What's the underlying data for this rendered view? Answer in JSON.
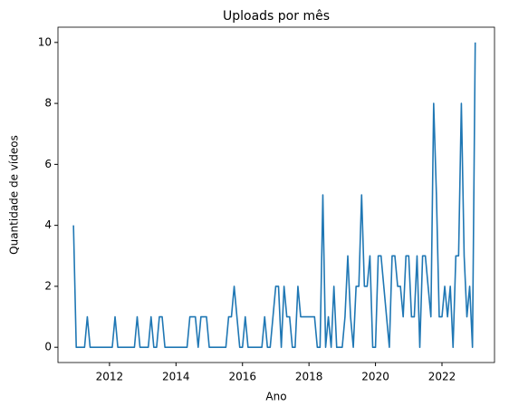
{
  "chart_data": {
    "type": "line",
    "title": "Uploads por mês",
    "x_label": "Ano",
    "y_label": "Quantidade de vídeos",
    "x": [
      2010.917,
      2011.0,
      2011.083,
      2011.167,
      2011.25,
      2011.333,
      2011.417,
      2011.5,
      2011.583,
      2011.667,
      2011.75,
      2011.833,
      2011.917,
      2012.0,
      2012.083,
      2012.167,
      2012.25,
      2012.333,
      2012.417,
      2012.5,
      2012.583,
      2012.667,
      2012.75,
      2012.833,
      2012.917,
      2013.0,
      2013.083,
      2013.167,
      2013.25,
      2013.333,
      2013.417,
      2013.5,
      2013.583,
      2013.667,
      2013.75,
      2013.833,
      2013.917,
      2014.0,
      2014.083,
      2014.167,
      2014.25,
      2014.333,
      2014.417,
      2014.5,
      2014.583,
      2014.667,
      2014.75,
      2014.833,
      2014.917,
      2015.0,
      2015.083,
      2015.167,
      2015.25,
      2015.333,
      2015.417,
      2015.5,
      2015.583,
      2015.667,
      2015.75,
      2015.833,
      2015.917,
      2016.0,
      2016.083,
      2016.167,
      2016.25,
      2016.333,
      2016.417,
      2016.5,
      2016.583,
      2016.667,
      2016.75,
      2016.833,
      2016.917,
      2017.0,
      2017.083,
      2017.167,
      2017.25,
      2017.333,
      2017.417,
      2017.5,
      2017.583,
      2017.667,
      2017.75,
      2017.833,
      2017.917,
      2018.0,
      2018.083,
      2018.167,
      2018.25,
      2018.333,
      2018.417,
      2018.5,
      2018.583,
      2018.667,
      2018.75,
      2018.833,
      2018.917,
      2019.0,
      2019.083,
      2019.167,
      2019.25,
      2019.333,
      2019.417,
      2019.5,
      2019.583,
      2019.667,
      2019.75,
      2019.833,
      2019.917,
      2020.0,
      2020.083,
      2020.167,
      2020.25,
      2020.333,
      2020.417,
      2020.5,
      2020.583,
      2020.667,
      2020.75,
      2020.833,
      2020.917,
      2021.0,
      2021.083,
      2021.167,
      2021.25,
      2021.333,
      2021.417,
      2021.5,
      2021.583,
      2021.667,
      2021.75,
      2021.833,
      2021.917,
      2022.0,
      2022.083,
      2022.167,
      2022.25,
      2022.333,
      2022.417,
      2022.5,
      2022.583,
      2022.667,
      2022.75,
      2022.833,
      2022.917,
      2023.0
    ],
    "series": [
      {
        "name": "uploads",
        "color": "#1f77b4",
        "values": [
          4,
          0,
          0,
          0,
          0,
          1,
          0,
          0,
          0,
          0,
          0,
          0,
          0,
          0,
          0,
          1,
          0,
          0,
          0,
          0,
          0,
          0,
          0,
          1,
          0,
          0,
          0,
          0,
          1,
          0,
          0,
          1,
          1,
          0,
          0,
          0,
          0,
          0,
          0,
          0,
          0,
          0,
          1,
          1,
          1,
          0,
          1,
          1,
          1,
          0,
          0,
          0,
          0,
          0,
          0,
          0,
          1,
          1,
          2,
          1,
          0,
          0,
          1,
          0,
          0,
          0,
          0,
          0,
          0,
          1,
          0,
          0,
          1,
          2,
          2,
          0,
          2,
          1,
          1,
          0,
          0,
          2,
          1,
          1,
          1,
          1,
          1,
          1,
          0,
          0,
          5,
          0,
          1,
          0,
          2,
          0,
          0,
          0,
          1,
          3,
          1,
          0,
          2,
          2,
          5,
          2,
          2,
          3,
          0,
          0,
          3,
          3,
          2,
          1,
          0,
          3,
          3,
          2,
          2,
          1,
          3,
          3,
          1,
          1,
          3,
          0,
          3,
          3,
          2,
          1,
          8,
          5,
          1,
          1,
          2,
          1,
          2,
          0,
          3,
          3,
          8,
          3,
          1,
          2,
          0,
          10
        ]
      }
    ],
    "xlim": [
      2010.45,
      2023.58
    ],
    "xticks": [
      2012,
      2014,
      2016,
      2018,
      2020,
      2022
    ],
    "ylim": [
      -0.5,
      10.5
    ],
    "yticks": [
      0,
      2,
      4,
      6,
      8,
      10
    ],
    "grid": false
  }
}
